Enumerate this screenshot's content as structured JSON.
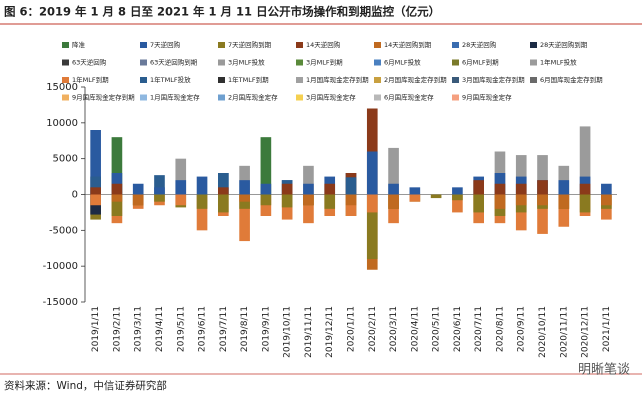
{
  "chart_data": {
    "type": "bar",
    "title": "图 6：2019 年 1 月 8 日至 2021 年 1 月 11 日公开市场操作和到期监控（亿元）",
    "source": "资料来源：Wind，中信证券研究部",
    "watermark": "明晰笔谈",
    "categories": [
      "2019/1/11",
      "2019/2/11",
      "2019/3/11",
      "2019/4/11",
      "2019/5/11",
      "2019/6/11",
      "2019/7/11",
      "2019/8/11",
      "2019/9/11",
      "2019/10/11",
      "2019/11/11",
      "2019/12/11",
      "2020/1/11",
      "2020/2/11",
      "2020/3/11",
      "2020/4/11",
      "2020/5/11",
      "2020/6/11",
      "2020/7/11",
      "2020/8/11",
      "2020/9/11",
      "2020/10/11",
      "2020/11/11",
      "2020/12/11",
      "2021/1/11"
    ],
    "ylim": [
      -15000,
      15000
    ],
    "yticks": [
      -15000,
      -10000,
      -5000,
      0,
      5000,
      10000,
      15000
    ],
    "series": [
      {
        "name": "降准",
        "color": "#3c7a3c",
        "values": [
          0,
          8000,
          0,
          0,
          0,
          0,
          0,
          0,
          8000,
          0,
          0,
          0,
          0,
          0,
          0,
          0,
          0,
          0,
          0,
          0,
          0,
          0,
          0,
          0,
          0
        ]
      },
      {
        "name": "7天逆回购",
        "color": "#2a5aa0",
        "values": [
          9000,
          3000,
          1500,
          1000,
          2000,
          2500,
          3000,
          2000,
          1500,
          2000,
          1500,
          2500,
          3000,
          6000,
          1500,
          1000,
          0,
          1000,
          2500,
          3000,
          2500,
          2000,
          2000,
          2500,
          1500
        ]
      },
      {
        "name": "7天逆回购到期",
        "color": "#8a7a20",
        "values": [
          -3500,
          -3000,
          -1500,
          -1000,
          -1800,
          -2000,
          -2500,
          -2000,
          -1500,
          -1800,
          -1500,
          -2000,
          -3000,
          -9000,
          -2000,
          -1000,
          -500,
          -800,
          -2500,
          -3000,
          -2500,
          -2000,
          -2000,
          -2500,
          -2000
        ]
      },
      {
        "name": "14天逆回购",
        "color": "#8b3a1a",
        "values": [
          1000,
          1500,
          0,
          0,
          0,
          0,
          1000,
          0,
          0,
          1500,
          0,
          1500,
          3000,
          12000,
          0,
          0,
          0,
          0,
          2000,
          1500,
          1500,
          2000,
          0,
          1500,
          0
        ]
      },
      {
        "name": "14天逆回购到期",
        "color": "#c06a20",
        "values": [
          0,
          -1000,
          -1500,
          0,
          0,
          0,
          0,
          -1000,
          0,
          0,
          -1500,
          0,
          -1500,
          -10500,
          -2000,
          0,
          0,
          0,
          0,
          -2000,
          -1500,
          -1500,
          -2000,
          0,
          -1500
        ]
      },
      {
        "name": "28天逆回购",
        "color": "#3a6db0",
        "values": [
          0,
          0,
          0,
          0,
          0,
          0,
          0,
          0,
          0,
          0,
          0,
          0,
          0,
          0,
          0,
          0,
          0,
          0,
          0,
          0,
          0,
          0,
          0,
          0,
          0
        ]
      },
      {
        "name": "28天逆回购到期",
        "color": "#1c2b45",
        "values": [
          -2800,
          0,
          0,
          0,
          0,
          0,
          0,
          0,
          0,
          0,
          0,
          0,
          0,
          0,
          0,
          0,
          0,
          0,
          0,
          0,
          0,
          0,
          0,
          0,
          0
        ]
      },
      {
        "name": "63天逆回购",
        "color": "#3a3a3a",
        "values": [
          0,
          0,
          0,
          0,
          0,
          0,
          0,
          0,
          0,
          0,
          0,
          0,
          0,
          0,
          0,
          0,
          0,
          0,
          0,
          0,
          0,
          0,
          0,
          0,
          0
        ]
      },
      {
        "name": "63天逆回购到期",
        "color": "#6a7a9a",
        "values": [
          0,
          0,
          0,
          0,
          0,
          0,
          0,
          0,
          0,
          0,
          0,
          0,
          0,
          0,
          0,
          0,
          0,
          0,
          0,
          0,
          0,
          0,
          0,
          0,
          0
        ]
      },
      {
        "name": "3月MLF投放",
        "color": "#9a9a9a",
        "values": [
          0,
          0,
          0,
          0,
          0,
          0,
          0,
          0,
          0,
          0,
          0,
          0,
          0,
          0,
          0,
          0,
          0,
          0,
          0,
          0,
          0,
          0,
          0,
          0,
          0
        ]
      },
      {
        "name": "3月MLF到期",
        "color": "#5a8a3a",
        "values": [
          0,
          0,
          0,
          0,
          0,
          0,
          0,
          0,
          0,
          0,
          0,
          0,
          0,
          0,
          0,
          0,
          0,
          0,
          0,
          0,
          0,
          0,
          0,
          0,
          0
        ]
      },
      {
        "name": "6月MLF投放",
        "color": "#4a80c0",
        "values": [
          0,
          0,
          0,
          0,
          0,
          0,
          0,
          0,
          0,
          0,
          0,
          0,
          0,
          0,
          0,
          0,
          0,
          0,
          0,
          0,
          0,
          0,
          0,
          0,
          0
        ]
      },
      {
        "name": "6月MLF到期",
        "color": "#7a7a2a",
        "values": [
          0,
          0,
          0,
          0,
          0,
          0,
          0,
          0,
          0,
          0,
          0,
          0,
          0,
          0,
          0,
          0,
          0,
          0,
          0,
          0,
          0,
          0,
          0,
          0,
          0
        ]
      },
      {
        "name": "1年MLF投放",
        "color": "#9b9b9b",
        "values": [
          0,
          0,
          0,
          0,
          5000,
          0,
          0,
          4000,
          0,
          0,
          4000,
          0,
          0,
          0,
          6500,
          0,
          0,
          0,
          0,
          6000,
          5500,
          5500,
          4000,
          9500,
          0
        ]
      },
      {
        "name": "1年MLF到期",
        "color": "#e07b39",
        "values": [
          -1500,
          -4000,
          -2000,
          -1500,
          -1500,
          -5000,
          -3000,
          -6500,
          -3000,
          -3500,
          -4000,
          -3000,
          -3000,
          -2500,
          -4000,
          -1000,
          0,
          -2500,
          -4000,
          -4000,
          -5000,
          -5500,
          -4500,
          -3000,
          -3500
        ]
      },
      {
        "name": "1年TMLF投放",
        "color": "#2a5d8f",
        "values": [
          2500,
          0,
          0,
          2700,
          0,
          0,
          3000,
          0,
          0,
          2000,
          0,
          0,
          2400,
          0,
          0,
          0,
          0,
          0,
          0,
          0,
          0,
          0,
          0,
          0,
          0
        ]
      },
      {
        "name": "1年TMLF到期",
        "color": "#303030",
        "values": [
          0,
          0,
          0,
          0,
          0,
          0,
          0,
          0,
          0,
          0,
          0,
          0,
          0,
          0,
          0,
          0,
          0,
          0,
          0,
          0,
          0,
          0,
          0,
          0,
          0
        ]
      },
      {
        "name": "1月国库现金定存到期",
        "color": "#a0a0a0",
        "values": [
          0,
          0,
          0,
          0,
          0,
          0,
          0,
          0,
          0,
          0,
          0,
          0,
          0,
          0,
          0,
          0,
          0,
          0,
          0,
          0,
          0,
          0,
          0,
          0,
          0
        ]
      },
      {
        "name": "2月国库现金定存到期",
        "color": "#c8a040",
        "values": [
          0,
          0,
          0,
          0,
          0,
          0,
          0,
          0,
          0,
          0,
          0,
          0,
          0,
          0,
          0,
          0,
          0,
          0,
          0,
          0,
          0,
          0,
          0,
          0,
          0
        ]
      },
      {
        "name": "3月国库现金定存到期",
        "color": "#3a5a7a",
        "values": [
          0,
          0,
          0,
          0,
          0,
          0,
          0,
          0,
          0,
          0,
          0,
          0,
          0,
          0,
          0,
          0,
          0,
          0,
          0,
          0,
          0,
          0,
          0,
          0,
          0
        ]
      },
      {
        "name": "6月国库现金定存到期",
        "color": "#6a6a6a",
        "values": [
          0,
          0,
          0,
          0,
          0,
          0,
          0,
          0,
          0,
          0,
          0,
          0,
          0,
          0,
          0,
          0,
          0,
          0,
          0,
          0,
          0,
          0,
          0,
          0,
          0
        ]
      },
      {
        "name": "9月国库现金定存到期",
        "color": "#f0b060",
        "values": [
          0,
          0,
          0,
          0,
          0,
          0,
          0,
          0,
          0,
          0,
          0,
          0,
          0,
          0,
          0,
          0,
          0,
          0,
          0,
          0,
          0,
          0,
          0,
          0,
          0
        ]
      },
      {
        "name": "1月国库现金定存",
        "color": "#8fb8e0",
        "values": [
          0,
          0,
          0,
          0,
          0,
          0,
          0,
          0,
          0,
          0,
          0,
          0,
          0,
          0,
          0,
          0,
          0,
          0,
          0,
          0,
          0,
          0,
          0,
          0,
          0
        ]
      },
      {
        "name": "2月国库现金定存",
        "color": "#6fa0d0",
        "values": [
          0,
          0,
          0,
          0,
          0,
          0,
          0,
          0,
          0,
          0,
          0,
          0,
          0,
          0,
          0,
          0,
          0,
          0,
          0,
          0,
          0,
          0,
          0,
          0,
          0
        ]
      },
      {
        "name": "3月国库现金定存",
        "color": "#f5d050",
        "values": [
          0,
          0,
          0,
          0,
          0,
          0,
          0,
          0,
          0,
          0,
          0,
          0,
          0,
          0,
          0,
          0,
          0,
          0,
          0,
          0,
          0,
          0,
          0,
          0,
          0
        ]
      },
      {
        "name": "6月国库现金定存",
        "color": "#b8b8b8",
        "values": [
          0,
          0,
          0,
          0,
          0,
          0,
          0,
          0,
          0,
          0,
          0,
          0,
          0,
          0,
          0,
          0,
          0,
          0,
          0,
          0,
          0,
          0,
          0,
          0,
          0
        ]
      },
      {
        "name": "9月国库现金定存",
        "color": "#f5a080",
        "values": [
          0,
          0,
          0,
          0,
          0,
          0,
          0,
          0,
          0,
          0,
          0,
          0,
          0,
          0,
          0,
          0,
          0,
          0,
          0,
          0,
          0,
          0,
          0,
          0,
          0
        ]
      }
    ]
  }
}
